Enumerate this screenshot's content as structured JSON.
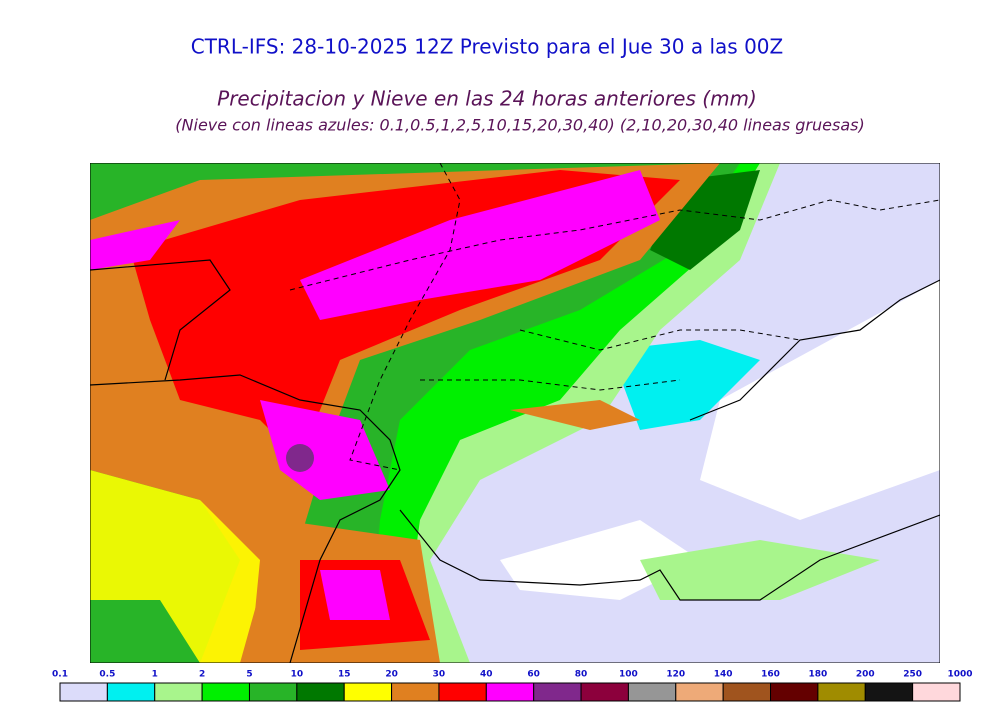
{
  "header": {
    "title": "CTRL-IFS: 28-10-2025 12Z Previsto para el Jue 30 a las 00Z",
    "subtitle": "Precipitacion y Nieve en las 24 horas anteriores (mm)",
    "note": "(Nieve con lineas azules: 0.1,0.5,1,2,5,10,15,20,30,40)  (2,10,20,30,40 lineas gruesas)"
  },
  "colorbar": {
    "bounds": [
      0.1,
      0.5,
      1,
      2,
      5,
      10,
      15,
      20,
      30,
      40,
      60,
      80,
      100,
      120,
      140,
      160,
      180,
      200,
      250,
      1000
    ],
    "colors": [
      "#dcdcfa",
      "#00f0f0",
      "#a8f58c",
      "#00f000",
      "#28b428",
      "#007800",
      "#ffff00",
      "#e08020",
      "#ff0000",
      "#ff00ff",
      "#80288c",
      "#8c003c",
      "#969696",
      "#eeaa78",
      "#a0541e",
      "#640000",
      "#a08c00",
      "#141414",
      "#ffd8dc"
    ]
  }
}
